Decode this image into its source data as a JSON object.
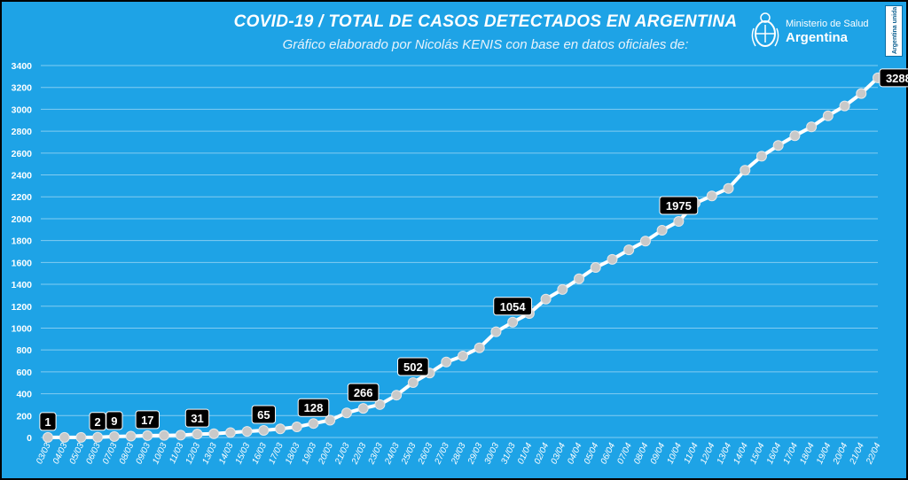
{
  "header": {
    "title": "COVID-19  /  TOTAL DE CASOS DETECTADOS EN ARGENTINA",
    "subtitle": "Gráfico elaborado por Nicolás KENIS con base en datos oficiales de:",
    "logo_line1": "Ministerio de Salud",
    "logo_line2": "Argentina",
    "badge_text": "Argentina unida"
  },
  "colors": {
    "background": "#1ea3e6",
    "line": "#ffffff",
    "marker": "#c9c9c9",
    "label_bg": "#000000",
    "label_text": "#ffffff"
  },
  "chart_data": {
    "type": "line",
    "title": "COVID-19  /  TOTAL DE CASOS DETECTADOS EN ARGENTINA",
    "xlabel": "",
    "ylabel": "",
    "ylim": [
      0,
      3400
    ],
    "yticks": [
      0,
      200,
      400,
      600,
      800,
      1000,
      1200,
      1400,
      1600,
      1800,
      2000,
      2200,
      2400,
      2600,
      2800,
      3000,
      3200,
      3400
    ],
    "grid": true,
    "categories": [
      "03/03",
      "04/03",
      "05/03",
      "06/03",
      "07/03",
      "08/03",
      "09/03",
      "10/03",
      "11/03",
      "12/03",
      "13/03",
      "14/03",
      "15/03",
      "16/03",
      "17/03",
      "18/03",
      "19/03",
      "20/03",
      "21/03",
      "22/03",
      "23/03",
      "24/03",
      "25/03",
      "26/03",
      "27/03",
      "28/03",
      "29/03",
      "30/03",
      "31/03",
      "01/04",
      "02/04",
      "03/04",
      "04/04",
      "05/04",
      "06/04",
      "07/04",
      "08/04",
      "09/04",
      "10/04",
      "11/04",
      "12/04",
      "13/04",
      "14/04",
      "15/04",
      "16/04",
      "17/04",
      "18/04",
      "19/04",
      "20/04",
      "21/04",
      "22/04"
    ],
    "values": [
      1,
      1,
      1,
      2,
      9,
      12,
      17,
      19,
      21,
      31,
      34,
      45,
      56,
      65,
      79,
      97,
      128,
      158,
      225,
      266,
      301,
      387,
      502,
      589,
      690,
      745,
      820,
      966,
      1054,
      1133,
      1265,
      1353,
      1451,
      1554,
      1628,
      1715,
      1795,
      1894,
      1975,
      2142,
      2208,
      2277,
      2443,
      2571,
      2669,
      2758,
      2839,
      2941,
      3031,
      3144,
      3288
    ],
    "data_labels": [
      {
        "category": "03/03",
        "text": "1"
      },
      {
        "category": "06/03",
        "text": "2"
      },
      {
        "category": "07/03",
        "text": "9"
      },
      {
        "category": "09/03",
        "text": "17"
      },
      {
        "category": "12/03",
        "text": "31"
      },
      {
        "category": "16/03",
        "text": "65"
      },
      {
        "category": "19/03",
        "text": "128"
      },
      {
        "category": "22/03",
        "text": "266"
      },
      {
        "category": "25/03",
        "text": "502"
      },
      {
        "category": "31/03",
        "text": "1054"
      },
      {
        "category": "10/04",
        "text": "1975"
      },
      {
        "category": "22/04",
        "text": "3288"
      }
    ]
  }
}
